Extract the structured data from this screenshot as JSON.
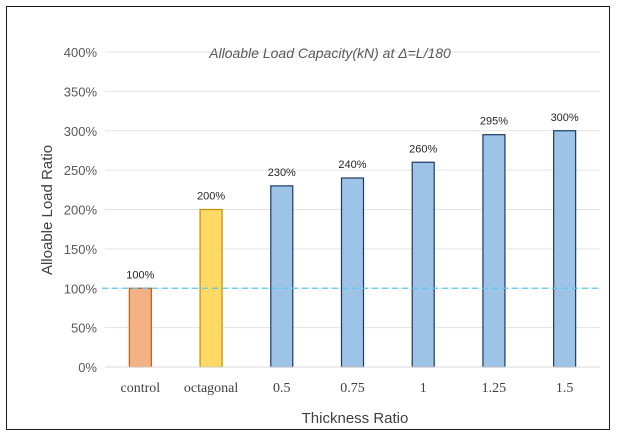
{
  "chart_data": {
    "type": "bar",
    "title": "Alloable Load Capacity(kN) at Δ=L/180",
    "xlabel": "Thickness Ratio",
    "ylabel": "Alloable  Load Ratio",
    "categories": [
      "control",
      "octagonal",
      "0.5",
      "0.75",
      "1",
      "1.25",
      "1.5"
    ],
    "values": [
      100,
      200,
      230,
      240,
      260,
      295,
      300
    ],
    "data_labels": [
      "100%",
      "200%",
      "230%",
      "240%",
      "260%",
      "295%",
      "300%"
    ],
    "bar_colors": [
      "#F4B183",
      "#FFD966",
      "#9DC3E6",
      "#9DC3E6",
      "#9DC3E6",
      "#9DC3E6",
      "#9DC3E6"
    ],
    "bar_borders": [
      "#C55A11",
      "#BF9000",
      "#1F3864",
      "#1F3864",
      "#1F3864",
      "#1F3864",
      "#1F3864"
    ],
    "ylim": [
      0,
      400
    ],
    "yticks": [
      "0%",
      "50%",
      "100%",
      "150%",
      "200%",
      "250%",
      "300%",
      "350%",
      "400%"
    ],
    "ytick_values": [
      0,
      50,
      100,
      150,
      200,
      250,
      300,
      350,
      400
    ],
    "reference_line": {
      "value": 100,
      "color": "#5BC8EE",
      "style": "dashed"
    },
    "grid": true,
    "legend": "none"
  }
}
